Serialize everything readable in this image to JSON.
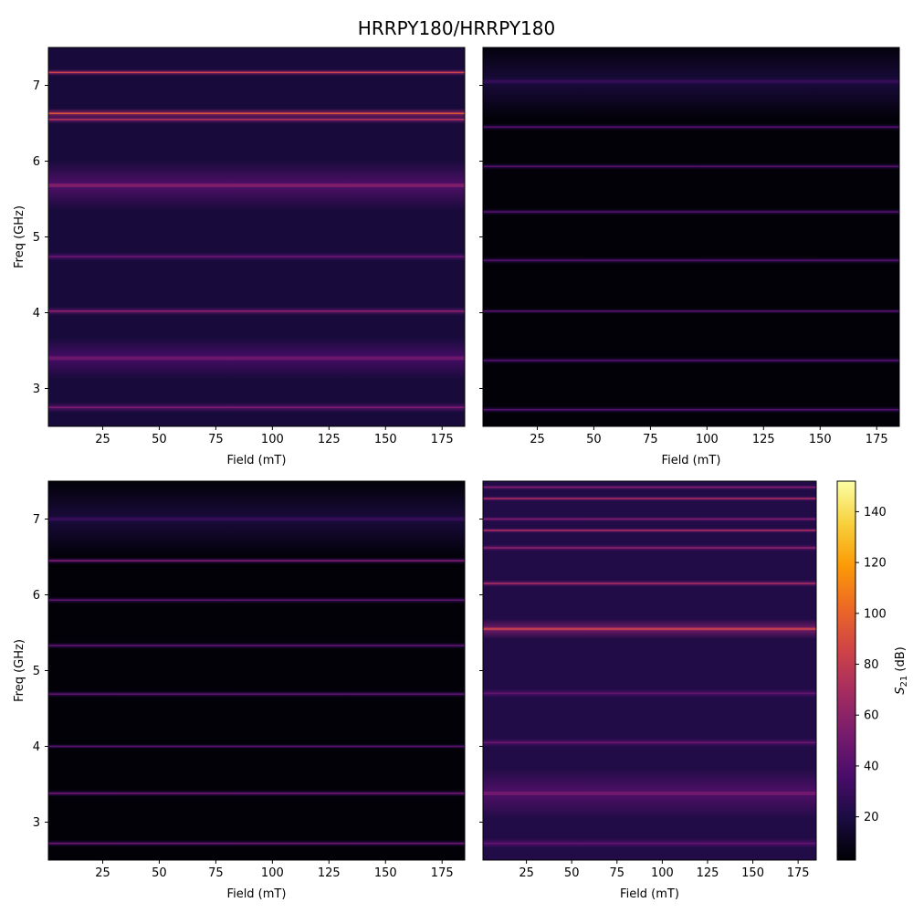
{
  "figure_title": "HRRPY180/HRRPY180",
  "colormap": [
    "#000004",
    "#1b0c41",
    "#4a0c6b",
    "#781c6d",
    "#a52c60",
    "#cf4446",
    "#ed6925",
    "#fb9b06",
    "#f7d13d",
    "#fcffa4"
  ],
  "chart_data": [
    {
      "type": "heatmap",
      "panel": "top-left",
      "xlabel": "Field (mT)",
      "ylabel": "Freq (GHz)",
      "xlim": [
        1,
        185
      ],
      "ylim": [
        2.5,
        7.5
      ],
      "xticks": [
        25,
        50,
        75,
        100,
        125,
        150,
        175
      ],
      "yticks": [
        3,
        4,
        5,
        6,
        7
      ],
      "background_level": 18,
      "bands": [
        {
          "freq": 2.75,
          "width": 0.06,
          "level": 55
        },
        {
          "freq": 3.4,
          "width": 0.25,
          "level": 48
        },
        {
          "freq": 4.02,
          "width": 0.05,
          "level": 60
        },
        {
          "freq": 4.74,
          "width": 0.05,
          "level": 48
        },
        {
          "freq": 5.68,
          "width": 0.3,
          "level": 55
        },
        {
          "freq": 6.55,
          "width": 0.05,
          "level": 75
        },
        {
          "freq": 6.63,
          "width": 0.06,
          "level": 95
        },
        {
          "freq": 7.17,
          "width": 0.04,
          "level": 85
        }
      ]
    },
    {
      "type": "heatmap",
      "panel": "top-right",
      "xlabel": "Field (mT)",
      "ylabel": "",
      "xlim": [
        1,
        185
      ],
      "ylim": [
        2.5,
        7.5
      ],
      "xticks": [
        25,
        50,
        75,
        100,
        125,
        150,
        175
      ],
      "yticks": [
        3,
        4,
        5,
        6,
        7
      ],
      "background_level": 4,
      "bands": [
        {
          "freq": 2.72,
          "width": 0.04,
          "level": 40
        },
        {
          "freq": 3.37,
          "width": 0.04,
          "level": 40
        },
        {
          "freq": 4.02,
          "width": 0.03,
          "level": 42
        },
        {
          "freq": 4.69,
          "width": 0.04,
          "level": 40
        },
        {
          "freq": 5.33,
          "width": 0.04,
          "level": 40
        },
        {
          "freq": 5.93,
          "width": 0.04,
          "level": 40
        },
        {
          "freq": 6.45,
          "width": 0.04,
          "level": 40
        },
        {
          "freq": 7.05,
          "width": 0.45,
          "level": 28
        }
      ]
    },
    {
      "type": "heatmap",
      "panel": "bottom-left",
      "xlabel": "Field (mT)",
      "ylabel": "Freq (GHz)",
      "xlim": [
        1,
        185
      ],
      "ylim": [
        2.5,
        7.5
      ],
      "xticks": [
        25,
        50,
        75,
        100,
        125,
        150,
        175
      ],
      "yticks": [
        3,
        4,
        5,
        6,
        7
      ],
      "background_level": 4,
      "bands": [
        {
          "freq": 2.72,
          "width": 0.04,
          "level": 48
        },
        {
          "freq": 3.38,
          "width": 0.04,
          "level": 50
        },
        {
          "freq": 4.0,
          "width": 0.03,
          "level": 42
        },
        {
          "freq": 4.69,
          "width": 0.04,
          "level": 44
        },
        {
          "freq": 5.33,
          "width": 0.04,
          "level": 44
        },
        {
          "freq": 5.93,
          "width": 0.04,
          "level": 44
        },
        {
          "freq": 6.45,
          "width": 0.04,
          "level": 55
        },
        {
          "freq": 7.0,
          "width": 0.45,
          "level": 28
        }
      ]
    },
    {
      "type": "heatmap",
      "panel": "bottom-right",
      "xlabel": "Field (mT)",
      "ylabel": "",
      "xlim": [
        1,
        185
      ],
      "ylim": [
        2.5,
        7.5
      ],
      "xticks": [
        25,
        50,
        75,
        100,
        125,
        150,
        175
      ],
      "yticks": [
        3,
        4,
        5,
        6,
        7
      ],
      "background_level": 22,
      "bands": [
        {
          "freq": 2.72,
          "width": 0.06,
          "level": 45
        },
        {
          "freq": 3.38,
          "width": 0.3,
          "level": 50
        },
        {
          "freq": 4.05,
          "width": 0.05,
          "level": 48
        },
        {
          "freq": 4.7,
          "width": 0.05,
          "level": 45
        },
        {
          "freq": 5.55,
          "width": 0.12,
          "level": 80
        },
        {
          "freq": 6.15,
          "width": 0.04,
          "level": 70
        },
        {
          "freq": 6.62,
          "width": 0.04,
          "level": 60
        },
        {
          "freq": 6.85,
          "width": 0.03,
          "level": 70
        },
        {
          "freq": 7.0,
          "width": 0.03,
          "level": 55
        },
        {
          "freq": 7.27,
          "width": 0.03,
          "level": 70
        },
        {
          "freq": 7.42,
          "width": 0.03,
          "level": 55
        }
      ]
    }
  ],
  "colorbar": {
    "label": "S21 (dB)",
    "label_main": "S",
    "label_sub": "21",
    "label_unit": " (dB)",
    "min": 3,
    "max": 152,
    "ticks": [
      20,
      40,
      60,
      80,
      100,
      120,
      140
    ]
  }
}
